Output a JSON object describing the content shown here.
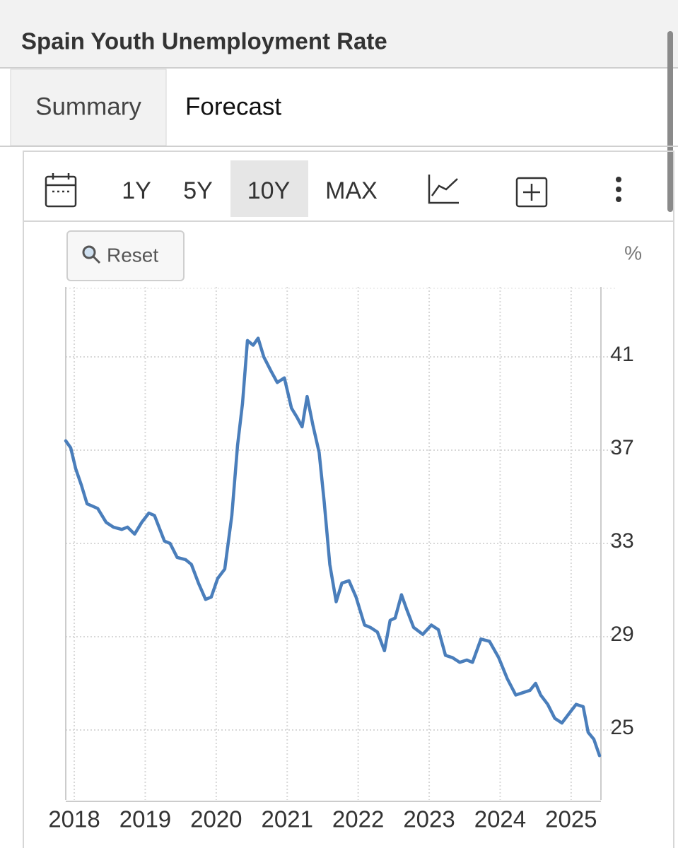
{
  "header": {
    "title": "Spain Youth Unemployment Rate"
  },
  "tabs": [
    "Summary",
    "Forecast"
  ],
  "toolbar": {
    "ranges": [
      "1Y",
      "5Y",
      "10Y",
      "MAX"
    ]
  },
  "reset": "Reset",
  "chart_data": {
    "type": "line",
    "unit": "%",
    "color": "#4a7ebb",
    "grid": true,
    "x": [
      2017.88,
      2017.95,
      2018.02,
      2018.1,
      2018.18,
      2018.33,
      2018.45,
      2018.55,
      2018.67,
      2018.75,
      2018.85,
      2018.95,
      2019.05,
      2019.13,
      2019.27,
      2019.35,
      2019.45,
      2019.57,
      2019.65,
      2019.75,
      2019.85,
      2019.93,
      2020.02,
      2020.12,
      2020.22,
      2020.3,
      2020.37,
      2020.44,
      2020.52,
      2020.59,
      2020.67,
      2020.77,
      2020.86,
      2020.96,
      2021.06,
      2021.14,
      2021.21,
      2021.28,
      2021.36,
      2021.45,
      2021.52,
      2021.6,
      2021.69,
      2021.77,
      2021.87,
      2021.97,
      2022.09,
      2022.17,
      2022.27,
      2022.37,
      2022.45,
      2022.52,
      2022.61,
      2022.68,
      2022.78,
      2022.91,
      2023.03,
      2023.13,
      2023.23,
      2023.33,
      2023.43,
      2023.53,
      2023.61,
      2023.73,
      2023.85,
      2023.98,
      2024.1,
      2024.22,
      2024.32,
      2024.42,
      2024.5,
      2024.57,
      2024.67,
      2024.77,
      2024.87,
      2024.97,
      2025.07,
      2025.17,
      2025.24,
      2025.32,
      2025.4
    ],
    "values": [
      37.4,
      37.1,
      36.2,
      35.5,
      34.7,
      34.5,
      33.9,
      33.7,
      33.6,
      33.7,
      33.4,
      33.9,
      34.3,
      34.2,
      33.1,
      33.0,
      32.4,
      32.3,
      32.1,
      31.3,
      30.6,
      30.7,
      31.5,
      31.9,
      34.2,
      37.2,
      39.0,
      41.7,
      41.5,
      41.8,
      41.0,
      40.4,
      39.9,
      40.1,
      38.8,
      38.4,
      38.0,
      39.3,
      38.1,
      36.9,
      34.8,
      32.1,
      30.5,
      31.3,
      31.4,
      30.7,
      29.5,
      29.4,
      29.2,
      28.4,
      29.7,
      29.8,
      30.8,
      30.2,
      29.4,
      29.1,
      29.5,
      29.3,
      28.2,
      28.1,
      27.9,
      28.0,
      27.9,
      28.9,
      28.8,
      28.1,
      27.2,
      26.5,
      26.6,
      26.7,
      27.0,
      26.5,
      26.1,
      25.5,
      25.3,
      25.7,
      26.1,
      26.0,
      24.9,
      24.6,
      23.9
    ],
    "xlim": [
      2017.88,
      2025.4
    ],
    "xticks": [
      2018,
      2019,
      2020,
      2021,
      2022,
      2023,
      2024,
      2025
    ],
    "ylim": [
      22,
      44
    ],
    "yticks": [
      25,
      29,
      33,
      37,
      41
    ]
  }
}
